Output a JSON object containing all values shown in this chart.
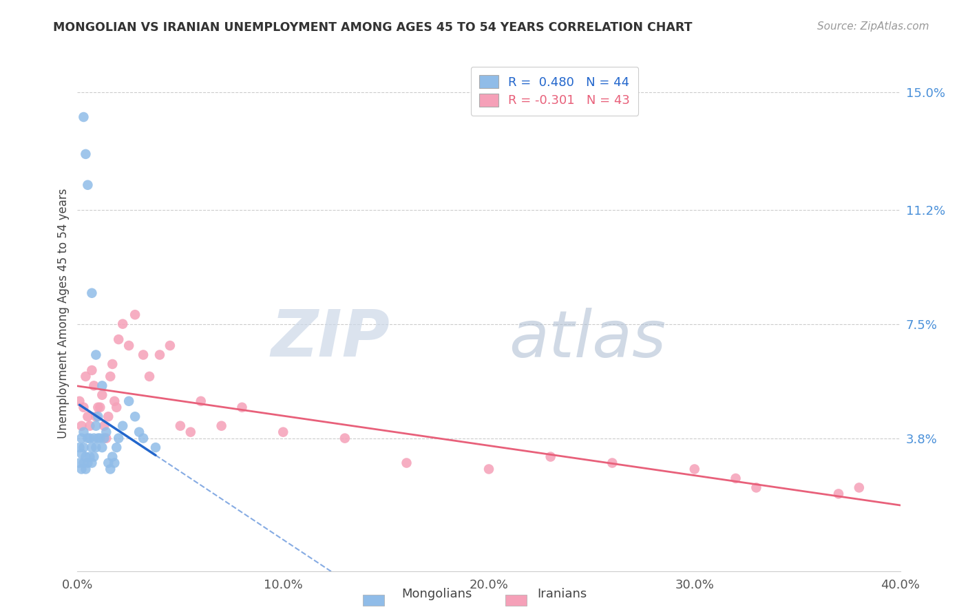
{
  "title": "MONGOLIAN VS IRANIAN UNEMPLOYMENT AMONG AGES 45 TO 54 YEARS CORRELATION CHART",
  "source": "Source: ZipAtlas.com",
  "ylabel": "Unemployment Among Ages 45 to 54 years",
  "xlim": [
    0.0,
    0.4
  ],
  "ylim": [
    -0.005,
    0.162
  ],
  "xticks": [
    0.0,
    0.1,
    0.2,
    0.3,
    0.4
  ],
  "xticklabels": [
    "0.0%",
    "10.0%",
    "20.0%",
    "30.0%",
    "40.0%"
  ],
  "yticks_right": [
    0.038,
    0.075,
    0.112,
    0.15
  ],
  "yticklabels_right": [
    "3.8%",
    "7.5%",
    "11.2%",
    "15.0%"
  ],
  "legend_mongolian": "R =  0.480   N = 44",
  "legend_iranian": "R = -0.301   N = 43",
  "mongolian_color": "#90bce8",
  "iranian_color": "#f5a0b8",
  "mongolian_line_color": "#2266cc",
  "iranian_line_color": "#e8607a",
  "background_color": "#ffffff",
  "mongolian_x": [
    0.001,
    0.001,
    0.002,
    0.002,
    0.002,
    0.003,
    0.003,
    0.003,
    0.004,
    0.004,
    0.005,
    0.005,
    0.006,
    0.006,
    0.007,
    0.007,
    0.008,
    0.008,
    0.009,
    0.009,
    0.01,
    0.01,
    0.011,
    0.012,
    0.013,
    0.014,
    0.015,
    0.016,
    0.017,
    0.018,
    0.019,
    0.02,
    0.022,
    0.025,
    0.028,
    0.03,
    0.032,
    0.038,
    0.003,
    0.004,
    0.005,
    0.007,
    0.009,
    0.012
  ],
  "mongolian_y": [
    0.03,
    0.035,
    0.028,
    0.033,
    0.038,
    0.03,
    0.035,
    0.04,
    0.028,
    0.032,
    0.03,
    0.038,
    0.032,
    0.038,
    0.03,
    0.035,
    0.032,
    0.038,
    0.035,
    0.042,
    0.038,
    0.045,
    0.038,
    0.035,
    0.038,
    0.04,
    0.03,
    0.028,
    0.032,
    0.03,
    0.035,
    0.038,
    0.042,
    0.05,
    0.045,
    0.04,
    0.038,
    0.035,
    0.142,
    0.13,
    0.12,
    0.085,
    0.065,
    0.055
  ],
  "iranian_x": [
    0.001,
    0.002,
    0.003,
    0.004,
    0.005,
    0.006,
    0.007,
    0.008,
    0.009,
    0.01,
    0.011,
    0.012,
    0.013,
    0.014,
    0.015,
    0.016,
    0.017,
    0.018,
    0.019,
    0.02,
    0.022,
    0.025,
    0.028,
    0.032,
    0.035,
    0.04,
    0.045,
    0.05,
    0.055,
    0.06,
    0.07,
    0.08,
    0.1,
    0.13,
    0.16,
    0.2,
    0.23,
    0.26,
    0.3,
    0.32,
    0.33,
    0.37,
    0.38
  ],
  "iranian_y": [
    0.05,
    0.042,
    0.048,
    0.058,
    0.045,
    0.042,
    0.06,
    0.055,
    0.045,
    0.048,
    0.048,
    0.052,
    0.042,
    0.038,
    0.045,
    0.058,
    0.062,
    0.05,
    0.048,
    0.07,
    0.075,
    0.068,
    0.078,
    0.065,
    0.058,
    0.065,
    0.068,
    0.042,
    0.04,
    0.05,
    0.042,
    0.048,
    0.04,
    0.038,
    0.03,
    0.028,
    0.032,
    0.03,
    0.028,
    0.025,
    0.022,
    0.02,
    0.022
  ],
  "mongolian_line_x": [
    0.001,
    0.038
  ],
  "iranian_line_x": [
    0.0,
    0.4
  ],
  "watermark_zip_color": "#ccd8e8",
  "watermark_atlas_color": "#aabbd0"
}
